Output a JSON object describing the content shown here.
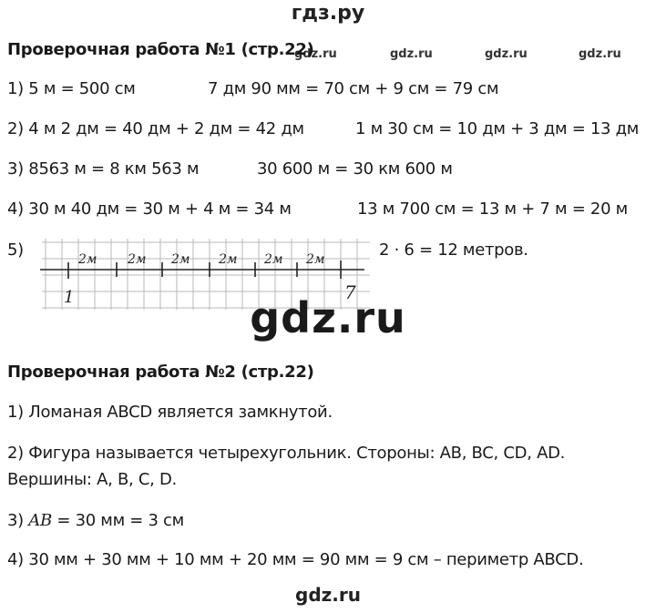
{
  "header": {
    "site": "гдз.ру"
  },
  "watermarks": {
    "small": [
      "gdz.ru",
      "gdz.ru",
      "gdz.ru",
      "gdz.ru"
    ],
    "big": "gdz.ru",
    "footer": "gdz.ru"
  },
  "work1": {
    "title": "Проверочная работа №1 (стр.22)",
    "t1a": "1) 5 м = 500 см",
    "t1b": "7 дм 90 мм = 70 см + 9 см = 79 см",
    "t2a": "2) 4 м 2 дм = 40 дм + 2 дм = 42 дм",
    "t2b": "1 м 30 см = 10 дм + 3 дм = 13 дм",
    "t3a": "3) 8563 м = 8 км 563 м",
    "t3b": "30 600 м = 30 км 600 м",
    "t4a": "4) 30 м 40 дм = 30 м + 4 м = 34 м",
    "t4b": "13 м 700 см = 13 м + 7 м = 20 м",
    "t5_num": "5)",
    "t5_result": "2 · 6 = 12 метров.",
    "drawing": {
      "segment_labels": [
        "2м",
        "2м",
        "2м",
        "2м",
        "2м",
        "2м"
      ],
      "start_label": "1",
      "end_label": "7"
    }
  },
  "work2": {
    "title": "Проверочная работа №2 (стр.22)",
    "t1": "1) Ломаная ABCD является замкнутой.",
    "t2a": "2) Фигура называется четырехугольник. Стороны: AB, BC, CD, AD.",
    "t2b": "Вершины: A, B, C, D.",
    "t3_num": "3)",
    "t3_var": "AB",
    "t3_rest": "= 30 мм = 3 см",
    "t4": "4) 30 мм + 30 мм + 10 мм + 20 мм = 90 мм = 9 см – периметр ABCD."
  }
}
